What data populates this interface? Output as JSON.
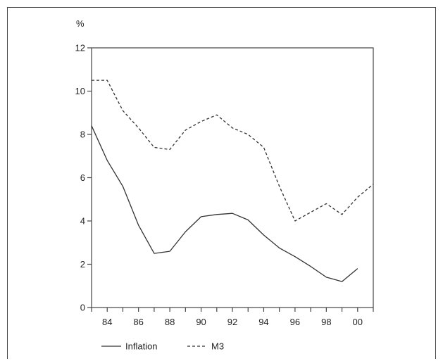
{
  "chart_data": {
    "type": "line",
    "title": "",
    "ylabel": "%",
    "xlabel": "",
    "xlim": [
      1983,
      2001
    ],
    "ylim": [
      0,
      12
    ],
    "y_ticks": [
      0,
      2,
      4,
      6,
      8,
      10,
      12
    ],
    "x_ticks": [
      {
        "value": 1984,
        "label": "84"
      },
      {
        "value": 1986,
        "label": "86"
      },
      {
        "value": 1988,
        "label": "88"
      },
      {
        "value": 1990,
        "label": "90"
      },
      {
        "value": 1992,
        "label": "92"
      },
      {
        "value": 1994,
        "label": "94"
      },
      {
        "value": 1996,
        "label": "96"
      },
      {
        "value": 1998,
        "label": "98"
      },
      {
        "value": 2000,
        "label": "00"
      }
    ],
    "grid": false,
    "legend_position": "bottom-left",
    "series": [
      {
        "name": "Inflation",
        "style": "solid",
        "color": "#333333",
        "x": [
          1983,
          1984,
          1985,
          1986,
          1987,
          1988,
          1989,
          1990,
          1991,
          1992,
          1993,
          1994,
          1995,
          1996,
          1997,
          1998,
          1999,
          2000
        ],
        "y": [
          8.4,
          6.8,
          5.6,
          3.8,
          2.5,
          2.6,
          3.5,
          4.2,
          4.3,
          4.35,
          4.05,
          3.35,
          2.75,
          2.35,
          1.9,
          1.4,
          1.2,
          1.8
        ]
      },
      {
        "name": "M3",
        "style": "dashed",
        "color": "#333333",
        "x": [
          1983,
          1984,
          1985,
          1986,
          1987,
          1988,
          1989,
          1990,
          1991,
          1992,
          1993,
          1994,
          1995,
          1996,
          1997,
          1998,
          1999,
          2000,
          2001
        ],
        "y": [
          10.5,
          10.5,
          9.1,
          8.3,
          7.4,
          7.3,
          8.2,
          8.6,
          8.9,
          8.3,
          8.0,
          7.4,
          5.6,
          4.0,
          4.4,
          4.8,
          4.3,
          5.1,
          5.7
        ]
      }
    ]
  }
}
